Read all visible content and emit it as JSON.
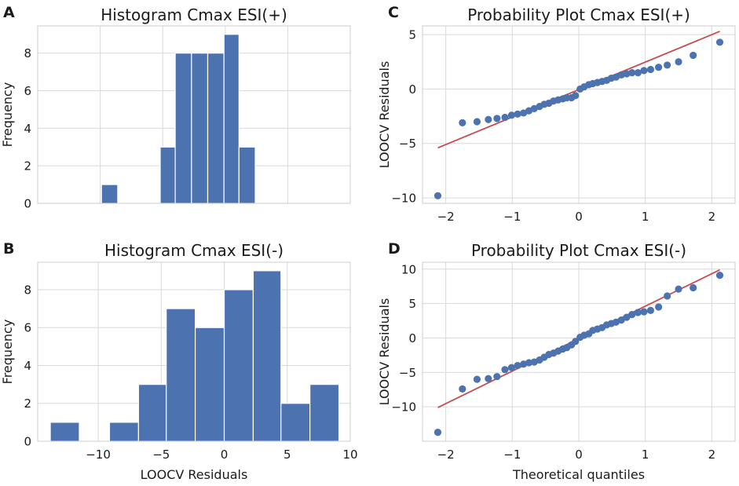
{
  "chart_data": [
    {
      "panel": "A",
      "type": "bar",
      "title": "Histogram Cmax ESI(+)",
      "xlabel": "",
      "ylabel": "Frequency",
      "xlim": [
        -15,
        10
      ],
      "ylim": [
        0,
        9.45
      ],
      "xticks": [
        -10,
        -5,
        0,
        5,
        10
      ],
      "yticks": [
        0,
        2,
        4,
        6,
        8
      ],
      "show_xtick_labels": false,
      "bins": [
        {
          "x0": -9.9,
          "x1": -8.6,
          "count": 1
        },
        {
          "x0": -5.2,
          "x1": -4.0,
          "count": 3
        },
        {
          "x0": -4.0,
          "x1": -2.7,
          "count": 8
        },
        {
          "x0": -2.7,
          "x1": -1.4,
          "count": 8
        },
        {
          "x0": -1.4,
          "x1": -0.1,
          "count": 8
        },
        {
          "x0": -0.1,
          "x1": 1.1,
          "count": 9
        },
        {
          "x0": 1.1,
          "x1": 2.4,
          "count": 3
        }
      ],
      "color": "#4c72b0"
    },
    {
      "panel": "B",
      "type": "bar",
      "title": "Histogram Cmax ESI(-)",
      "xlabel": "LOOCV Residuals",
      "ylabel": "Frequency",
      "xlim": [
        -14.8,
        10
      ],
      "ylim": [
        0,
        9.45
      ],
      "xticks": [
        -10,
        -5,
        0,
        5,
        10
      ],
      "yticks": [
        0,
        2,
        4,
        6,
        8
      ],
      "show_xtick_labels": true,
      "bins": [
        {
          "x0": -13.8,
          "x1": -11.5,
          "count": 1
        },
        {
          "x0": -9.1,
          "x1": -6.8,
          "count": 1
        },
        {
          "x0": -6.8,
          "x1": -4.6,
          "count": 3
        },
        {
          "x0": -4.6,
          "x1": -2.3,
          "count": 7
        },
        {
          "x0": -2.3,
          "x1": 0.0,
          "count": 6
        },
        {
          "x0": 0.0,
          "x1": 2.3,
          "count": 8
        },
        {
          "x0": 2.3,
          "x1": 4.5,
          "count": 9
        },
        {
          "x0": 4.5,
          "x1": 6.8,
          "count": 2
        },
        {
          "x0": 6.8,
          "x1": 9.1,
          "count": 3
        }
      ],
      "color": "#4c72b0"
    },
    {
      "panel": "C",
      "type": "scatter",
      "title": "Probability Plot Cmax ESI(+)",
      "xlabel": "",
      "ylabel": "LOOCV Residuals",
      "xlim": [
        -2.35,
        2.35
      ],
      "ylim": [
        -10.5,
        5.8
      ],
      "xticks": [
        -2,
        -1,
        0,
        1,
        2
      ],
      "yticks": [
        -10,
        -5,
        0,
        5
      ],
      "show_xtick_labels": true,
      "fit_line": {
        "x": [
          -2.12,
          2.12
        ],
        "y": [
          -5.4,
          5.3
        ],
        "color": "#c44e52"
      },
      "points": [
        [
          -2.12,
          -9.8
        ],
        [
          -1.75,
          -3.1
        ],
        [
          -1.53,
          -3.0
        ],
        [
          -1.36,
          -2.8
        ],
        [
          -1.23,
          -2.7
        ],
        [
          -1.11,
          -2.6
        ],
        [
          -1.01,
          -2.4
        ],
        [
          -0.92,
          -2.3
        ],
        [
          -0.83,
          -2.2
        ],
        [
          -0.75,
          -2.0
        ],
        [
          -0.67,
          -1.8
        ],
        [
          -0.59,
          -1.6
        ],
        [
          -0.52,
          -1.4
        ],
        [
          -0.45,
          -1.3
        ],
        [
          -0.38,
          -1.1
        ],
        [
          -0.31,
          -1.0
        ],
        [
          -0.24,
          -0.9
        ],
        [
          -0.18,
          -0.8
        ],
        [
          -0.11,
          -0.8
        ],
        [
          -0.05,
          -0.6
        ],
        [
          0.02,
          0.0
        ],
        [
          0.08,
          0.2
        ],
        [
          0.15,
          0.4
        ],
        [
          0.21,
          0.5
        ],
        [
          0.28,
          0.6
        ],
        [
          0.35,
          0.7
        ],
        [
          0.42,
          0.8
        ],
        [
          0.49,
          1.0
        ],
        [
          0.56,
          1.1
        ],
        [
          0.64,
          1.3
        ],
        [
          0.72,
          1.4
        ],
        [
          0.8,
          1.5
        ],
        [
          0.89,
          1.5
        ],
        [
          0.98,
          1.7
        ],
        [
          1.08,
          1.8
        ],
        [
          1.2,
          2.0
        ],
        [
          1.33,
          2.2
        ],
        [
          1.5,
          2.5
        ],
        [
          1.72,
          3.1
        ],
        [
          2.12,
          4.3
        ]
      ],
      "color": "#4c72b0"
    },
    {
      "panel": "D",
      "type": "scatter",
      "title": "Probability Plot Cmax ESI(-)",
      "xlabel": "Theoretical quantiles",
      "ylabel": "LOOCV Residuals",
      "xlim": [
        -2.35,
        2.35
      ],
      "ylim": [
        -15,
        11
      ],
      "xticks": [
        -2,
        -1,
        0,
        1,
        2
      ],
      "yticks": [
        -10,
        -5,
        0,
        5,
        10
      ],
      "show_xtick_labels": true,
      "fit_line": {
        "x": [
          -2.12,
          2.12
        ],
        "y": [
          -10.1,
          9.9
        ],
        "color": "#c44e52"
      },
      "points": [
        [
          -2.12,
          -13.7
        ],
        [
          -1.75,
          -7.4
        ],
        [
          -1.53,
          -6.0
        ],
        [
          -1.36,
          -5.9
        ],
        [
          -1.23,
          -5.6
        ],
        [
          -1.11,
          -4.6
        ],
        [
          -1.01,
          -4.3
        ],
        [
          -0.92,
          -4.0
        ],
        [
          -0.83,
          -3.8
        ],
        [
          -0.75,
          -3.6
        ],
        [
          -0.67,
          -3.5
        ],
        [
          -0.59,
          -3.2
        ],
        [
          -0.52,
          -2.8
        ],
        [
          -0.45,
          -2.4
        ],
        [
          -0.38,
          -2.2
        ],
        [
          -0.31,
          -1.9
        ],
        [
          -0.24,
          -1.6
        ],
        [
          -0.18,
          -1.4
        ],
        [
          -0.11,
          -1.0
        ],
        [
          -0.05,
          -0.5
        ],
        [
          0.02,
          0.1
        ],
        [
          0.08,
          0.4
        ],
        [
          0.15,
          0.6
        ],
        [
          0.21,
          1.1
        ],
        [
          0.28,
          1.3
        ],
        [
          0.35,
          1.5
        ],
        [
          0.42,
          1.9
        ],
        [
          0.49,
          2.1
        ],
        [
          0.56,
          2.3
        ],
        [
          0.64,
          2.6
        ],
        [
          0.72,
          3.0
        ],
        [
          0.8,
          3.4
        ],
        [
          0.89,
          3.7
        ],
        [
          0.98,
          3.8
        ],
        [
          1.08,
          4.0
        ],
        [
          1.2,
          4.5
        ],
        [
          1.33,
          6.1
        ],
        [
          1.5,
          7.1
        ],
        [
          1.72,
          7.3
        ],
        [
          2.12,
          9.1
        ]
      ],
      "color": "#4c72b0"
    }
  ]
}
